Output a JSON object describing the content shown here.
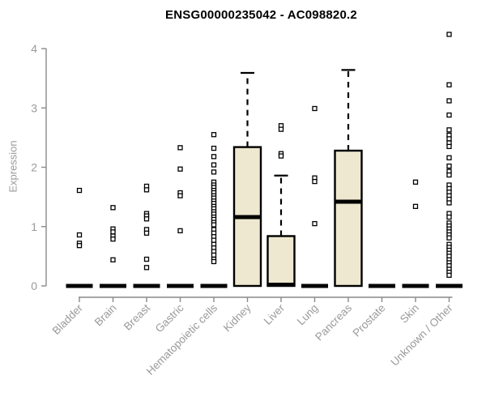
{
  "chart_data": {
    "type": "boxplot",
    "title": "ENSG00000235042 - AC098820.2",
    "ylabel": "Expression",
    "ylim": [
      0,
      4.3
    ],
    "yticks": [
      0,
      1,
      2,
      3,
      4
    ],
    "grid": false,
    "categories": [
      "Bladder",
      "Brain",
      "Breast",
      "Gastric",
      "Hematopoietic cells",
      "Kidney",
      "Liver",
      "Lung",
      "Pancreas",
      "Prostate",
      "Skin",
      "Unknown / Other"
    ],
    "boxes": [
      {
        "category": "Bladder",
        "q1": 0,
        "median": 0,
        "q3": 0,
        "whisker_low": 0,
        "whisker_high": 0,
        "outliers": [
          1.61,
          0.86,
          0.72,
          0.68
        ]
      },
      {
        "category": "Brain",
        "q1": 0,
        "median": 0,
        "q3": 0,
        "whisker_low": 0,
        "whisker_high": 0,
        "outliers": [
          1.32,
          0.96,
          0.91,
          0.84,
          0.79,
          0.44
        ]
      },
      {
        "category": "Breast",
        "q1": 0,
        "median": 0,
        "q3": 0,
        "whisker_low": 0,
        "whisker_high": 0,
        "outliers": [
          1.68,
          1.62,
          1.22,
          1.18,
          1.13,
          0.95,
          0.89,
          0.45,
          0.31
        ]
      },
      {
        "category": "Gastric",
        "q1": 0,
        "median": 0,
        "q3": 0,
        "whisker_low": 0,
        "whisker_high": 0,
        "outliers": [
          2.33,
          1.97,
          1.57,
          1.52,
          0.93
        ]
      },
      {
        "category": "Hematopoietic cells",
        "q1": 0,
        "median": 0,
        "q3": 0,
        "whisker_low": 0,
        "whisker_high": 0,
        "outliers": [
          2.55,
          2.32,
          2.18,
          2.04,
          1.92,
          1.75,
          1.7,
          1.66,
          1.61,
          1.57,
          1.52,
          1.48,
          1.43,
          1.39,
          1.34,
          1.3,
          1.25,
          1.21,
          1.16,
          1.12,
          1.07,
          1.03,
          0.95,
          0.89,
          0.83,
          0.77,
          0.7,
          0.64,
          0.58,
          0.52,
          0.45,
          0.41
        ]
      },
      {
        "category": "Kidney",
        "q1": 0,
        "median": 1.16,
        "q3": 2.34,
        "whisker_low": 0,
        "whisker_high": 3.59,
        "outliers": []
      },
      {
        "category": "Liver",
        "q1": 0,
        "median": 0.02,
        "q3": 0.84,
        "whisker_low": 0,
        "whisker_high": 1.86,
        "outliers": [
          2.7,
          2.64,
          2.23,
          2.19
        ]
      },
      {
        "category": "Lung",
        "q1": 0,
        "median": 0,
        "q3": 0,
        "whisker_low": 0,
        "whisker_high": 0,
        "outliers": [
          2.99,
          1.82,
          1.76,
          1.05
        ]
      },
      {
        "category": "Pancreas",
        "q1": 0,
        "median": 1.42,
        "q3": 2.28,
        "whisker_low": 0,
        "whisker_high": 3.64,
        "outliers": []
      },
      {
        "category": "Prostate",
        "q1": 0,
        "median": 0,
        "q3": 0,
        "whisker_low": 0,
        "whisker_high": 0,
        "outliers": []
      },
      {
        "category": "Skin",
        "q1": 0,
        "median": 0,
        "q3": 0,
        "whisker_low": 0,
        "whisker_high": 0,
        "outliers": [
          1.75,
          1.34
        ]
      },
      {
        "category": "Unknown / Other",
        "q1": 0,
        "median": 0,
        "q3": 0,
        "whisker_low": 0,
        "whisker_high": 0,
        "outliers": [
          4.24,
          3.39,
          3.12,
          2.88,
          2.63,
          2.54,
          2.48,
          2.41,
          2.35,
          2.16,
          2.02,
          1.93,
          1.87,
          1.7,
          1.64,
          1.58,
          1.52,
          1.46,
          1.4,
          1.22,
          1.16,
          1.06,
          1.01,
          0.96,
          0.91,
          0.86,
          0.81,
          0.7,
          0.65,
          0.6,
          0.55,
          0.5,
          0.44,
          0.39,
          0.34,
          0.28,
          0.23,
          0.18
        ]
      }
    ],
    "colors": {
      "box_fill": "#ede8cf",
      "box_stroke": "#000000",
      "median": "#000000",
      "whisker": "#000000",
      "outlier_stroke": "#000000",
      "outlier_fill": "#ffffff",
      "axis_line": "#8a8a8a",
      "tick_text": "#9a9a9a",
      "title_text": "#000000",
      "background": "#ffffff"
    },
    "legend": null
  }
}
